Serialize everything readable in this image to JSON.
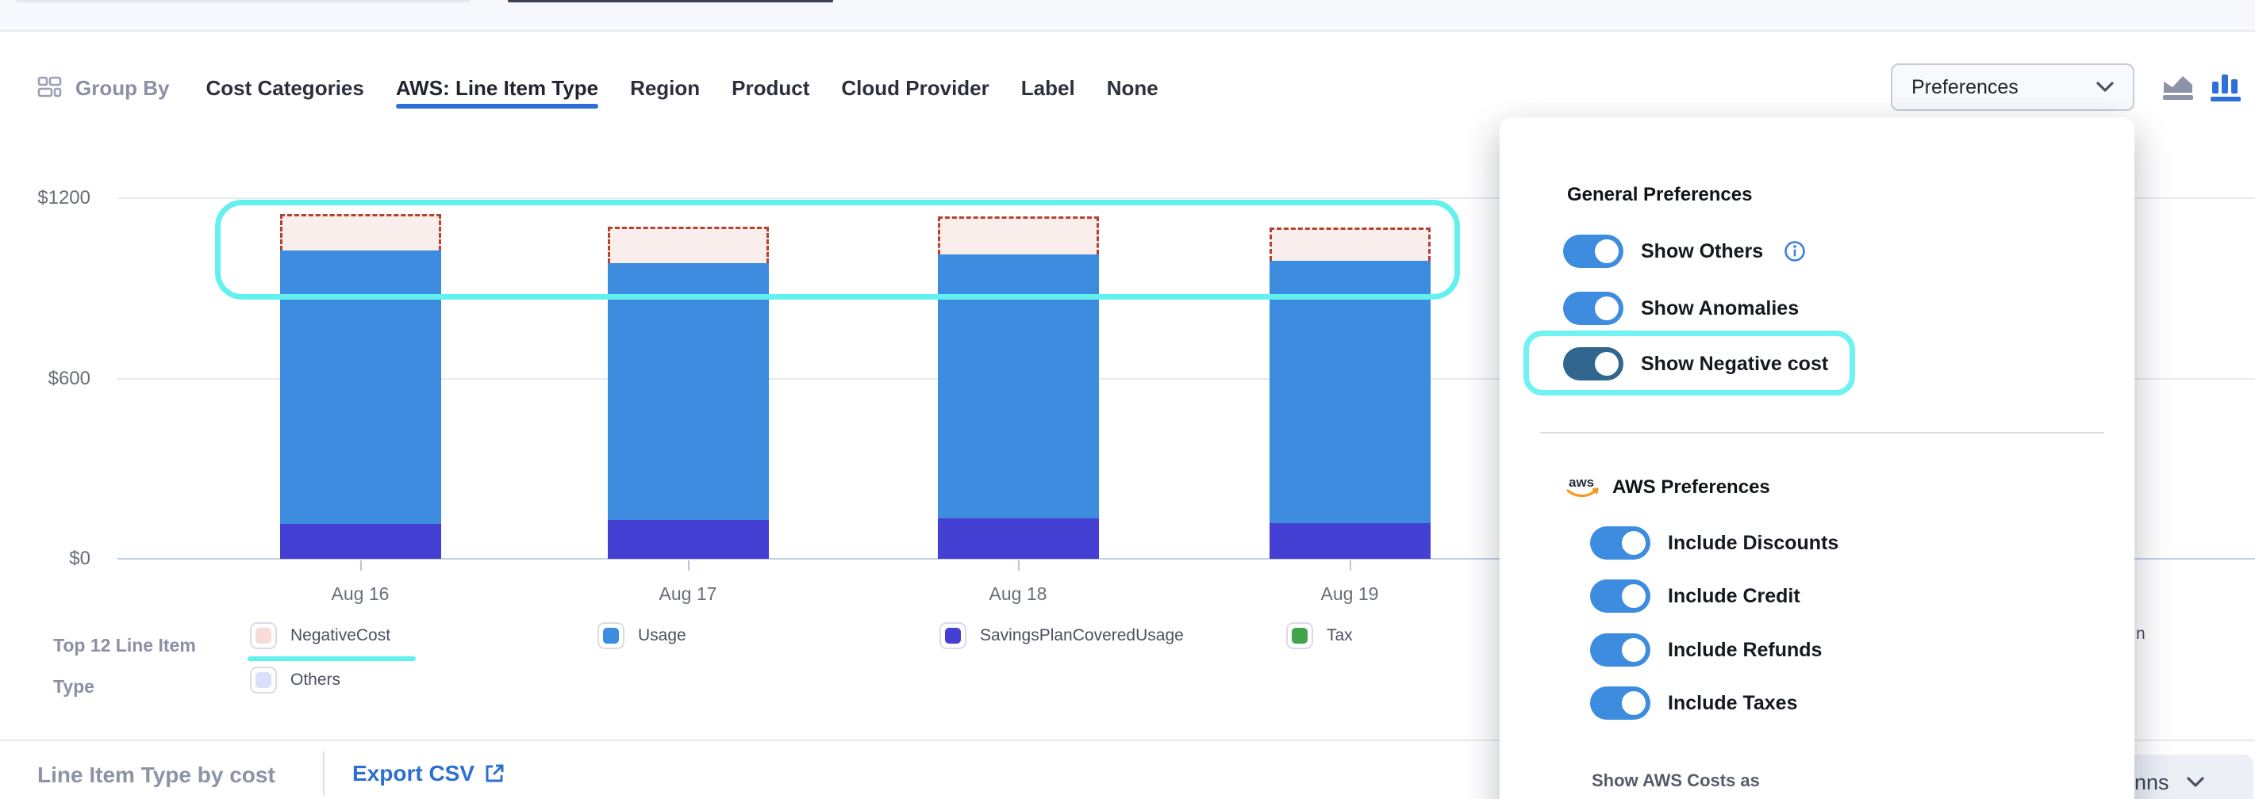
{
  "header": {
    "group_by_label": "Group By",
    "tabs": [
      {
        "label": "Cost Categories",
        "active": false
      },
      {
        "label": "AWS: Line Item Type",
        "active": true
      },
      {
        "label": "Region",
        "active": false
      },
      {
        "label": "Product",
        "active": false
      },
      {
        "label": "Cloud Provider",
        "active": false
      },
      {
        "label": "Label",
        "active": false
      },
      {
        "label": "None",
        "active": false
      }
    ],
    "preferences_button_label": "Preferences"
  },
  "chart_data": {
    "type": "bar",
    "stacked": true,
    "categories": [
      "Aug 16",
      "Aug 17",
      "Aug 18",
      "Aug 19"
    ],
    "series": [
      {
        "name": "SavingsPlanCoveredUsage",
        "color": "#4540d4",
        "values": [
          116,
          129,
          135,
          119
        ]
      },
      {
        "name": "Usage",
        "color": "#3d8ce0",
        "values": [
          911,
          856,
          879,
          874
        ]
      },
      {
        "name": "NegativeCost",
        "color": "#faeeec",
        "border_color": "#b8402f",
        "style": "dashed",
        "values": [
          121,
          121,
          127,
          111
        ]
      }
    ],
    "yticks": [
      "$0",
      "$600",
      "$1200"
    ],
    "ylim": [
      0,
      1200
    ],
    "grid": true,
    "annotation": "cyan rounded highlight around negative-cost dashed segments"
  },
  "legend": {
    "title_line1": "Top 12 Line Item",
    "title_line2": "Type",
    "items": [
      {
        "label": "NegativeCost",
        "color": "#f7ddd7",
        "highlighted": true
      },
      {
        "label": "Usage",
        "color": "#3d8ce0",
        "highlighted": false
      },
      {
        "label": "SavingsPlanCoveredUsage",
        "color": "#4540d4",
        "highlighted": false
      },
      {
        "label": "Tax",
        "color": "#43a34b",
        "highlighted": false
      },
      {
        "label": "Others",
        "color": "#dbe0fa",
        "highlighted": false
      }
    ],
    "clipped_text": "n"
  },
  "panel": {
    "general_heading": "General Preferences",
    "general_toggles": [
      {
        "label": "Show Others",
        "on": true,
        "info": true,
        "highlighted": false
      },
      {
        "label": "Show Anomalies",
        "on": true,
        "info": false,
        "highlighted": false
      },
      {
        "label": "Show Negative cost",
        "on": true,
        "info": false,
        "highlighted": true
      }
    ],
    "aws_heading": "AWS Preferences",
    "aws_toggles": [
      {
        "label": "Include Discounts",
        "on": true
      },
      {
        "label": "Include Credit",
        "on": true
      },
      {
        "label": "Include Refunds",
        "on": true
      },
      {
        "label": "Include Taxes",
        "on": true
      }
    ],
    "footer_label": "Show AWS Costs as"
  },
  "footer": {
    "title": "Line Item Type by cost",
    "export_label": "Export CSV",
    "clipped_dropdown_text": "nns"
  },
  "colors": {
    "accent_blue": "#2e6fd6",
    "toggle_blue": "#3d8ce0",
    "toggle_dark": "#31668f",
    "cyan_highlight": "#63f1ef",
    "negative_fill": "#faeeec",
    "negative_border": "#b8402f"
  }
}
